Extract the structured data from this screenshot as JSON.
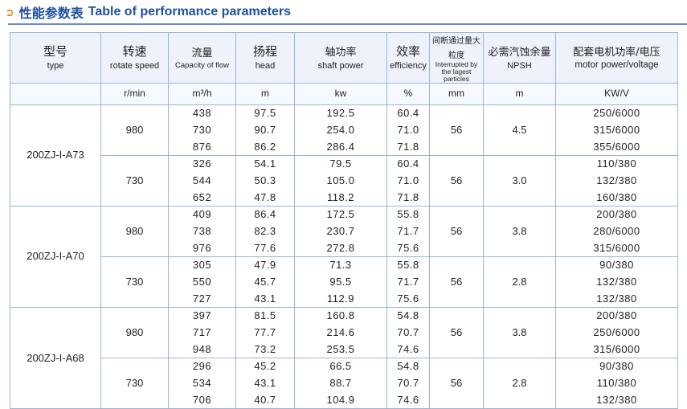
{
  "title": {
    "cn": "性能参数表",
    "en": "Table of performance parameters"
  },
  "headers": [
    {
      "cn": "型号",
      "en": "type"
    },
    {
      "cn": "转速",
      "en": "rotate speed"
    },
    {
      "cn": "流量",
      "en": "Capacity of flow"
    },
    {
      "cn": "扬程",
      "en": "head"
    },
    {
      "cn": "轴功率",
      "en": "shaft power"
    },
    {
      "cn": "效率",
      "en": "efficiency"
    },
    {
      "cn": "间断通过量大粒度",
      "en": "Interrupted by the lagest particles"
    },
    {
      "cn": "必需汽蚀余量",
      "en": "NPSH"
    },
    {
      "cn": "配套电机功率/电压",
      "en": "motor power/voltage"
    }
  ],
  "units": [
    "r/min",
    "m³/h",
    "m",
    "kw",
    "%",
    "mm",
    "m",
    "KW/V"
  ],
  "models": [
    {
      "name": "200ZJ-I-A73",
      "speeds": [
        {
          "speed": "980",
          "particle": "56",
          "npsh": "4.5",
          "rows": [
            {
              "flow": "438",
              "head": "97.5",
              "power": "192.5",
              "eff": "60.4",
              "motor": "250/6000"
            },
            {
              "flow": "730",
              "head": "90.7",
              "power": "254.0",
              "eff": "71.0",
              "motor": "315/6000"
            },
            {
              "flow": "876",
              "head": "86.2",
              "power": "286.4",
              "eff": "71.8",
              "motor": "355/6000"
            }
          ]
        },
        {
          "speed": "730",
          "particle": "56",
          "npsh": "3.0",
          "rows": [
            {
              "flow": "326",
              "head": "54.1",
              "power": "79.5",
              "eff": "60.4",
              "motor": "110/380"
            },
            {
              "flow": "544",
              "head": "50.3",
              "power": "105.0",
              "eff": "71.0",
              "motor": "132/380"
            },
            {
              "flow": "652",
              "head": "47.8",
              "power": "118.2",
              "eff": "71.8",
              "motor": "160/380"
            }
          ]
        }
      ]
    },
    {
      "name": "200ZJ-I-A70",
      "speeds": [
        {
          "speed": "980",
          "particle": "56",
          "npsh": "3.8",
          "rows": [
            {
              "flow": "409",
              "head": "86.4",
              "power": "172.5",
              "eff": "55.8",
              "motor": "200/380"
            },
            {
              "flow": "738",
              "head": "82.3",
              "power": "230.7",
              "eff": "71.7",
              "motor": "280/6000"
            },
            {
              "flow": "976",
              "head": "77.6",
              "power": "272.8",
              "eff": "75.6",
              "motor": "315/6000"
            }
          ]
        },
        {
          "speed": "730",
          "particle": "56",
          "npsh": "2.8",
          "rows": [
            {
              "flow": "305",
              "head": "47.9",
              "power": "71.3",
              "eff": "55.8",
              "motor": "90/380"
            },
            {
              "flow": "550",
              "head": "45.7",
              "power": "95.5",
              "eff": "71.7",
              "motor": "132/380"
            },
            {
              "flow": "727",
              "head": "43.1",
              "power": "112.9",
              "eff": "75.6",
              "motor": "132/380"
            }
          ]
        }
      ]
    },
    {
      "name": "200ZJ-I-A68",
      "speeds": [
        {
          "speed": "980",
          "particle": "56",
          "npsh": "3.8",
          "rows": [
            {
              "flow": "397",
              "head": "81.5",
              "power": "160.8",
              "eff": "54.8",
              "motor": "200/380"
            },
            {
              "flow": "717",
              "head": "77.7",
              "power": "214.6",
              "eff": "70.7",
              "motor": "250/6000"
            },
            {
              "flow": "948",
              "head": "73.2",
              "power": "253.5",
              "eff": "74.6",
              "motor": "315/6000"
            }
          ]
        },
        {
          "speed": "730",
          "particle": "56",
          "npsh": "2.8",
          "rows": [
            {
              "flow": "296",
              "head": "45.2",
              "power": "66.5",
              "eff": "54.8",
              "motor": "90/380"
            },
            {
              "flow": "534",
              "head": "43.1",
              "power": "88.7",
              "eff": "70.7",
              "motor": "110/380"
            },
            {
              "flow": "706",
              "head": "40.7",
              "power": "104.9",
              "eff": "74.6",
              "motor": "132/380"
            }
          ]
        }
      ]
    }
  ]
}
